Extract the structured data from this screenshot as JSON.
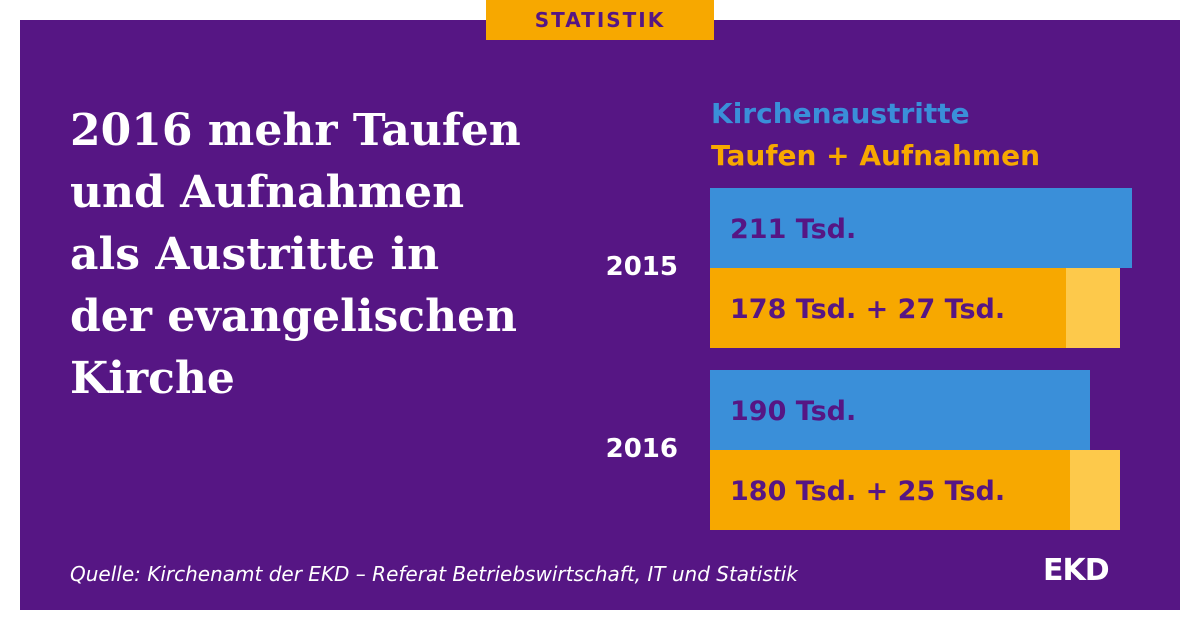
{
  "header": {
    "tag": "STATISTIK"
  },
  "title_lines": [
    "2016 mehr Taufen",
    "und Aufnahmen",
    "als Austritte in",
    "der evangelischen",
    "Kirche"
  ],
  "legend": {
    "exits": "Kirchenaustritte",
    "baptisms": "Taufen + Aufnahmen"
  },
  "colors": {
    "background": "#561684",
    "exits": "#3a8fd9",
    "baptisms": "#f7a800",
    "admissions": "#fdc94b",
    "tag": "#f7a800"
  },
  "chart_data": {
    "type": "bar",
    "orientation": "horizontal",
    "stacked": true,
    "categories": [
      "2015",
      "2016"
    ],
    "series": [
      {
        "name": "Kirchenaustritte",
        "values": [
          211,
          190
        ]
      },
      {
        "name": "Taufen + Aufnahmen",
        "stack": [
          "Taufen",
          "Aufnahmen"
        ],
        "values": [
          [
            178,
            27
          ],
          [
            180,
            25
          ]
        ]
      }
    ],
    "labels": {
      "exits": [
        "211 Tsd.",
        "190 Tsd."
      ],
      "baptisms": [
        "178 Tsd. + 27 Tsd.",
        "180 Tsd. + 25 Tsd."
      ]
    },
    "unit": "Tsd."
  },
  "footer": {
    "source": "Quelle:  Kirchenamt der EKD – Referat Betriebswirtschaft, IT und Statistik",
    "logo": "EKD"
  }
}
